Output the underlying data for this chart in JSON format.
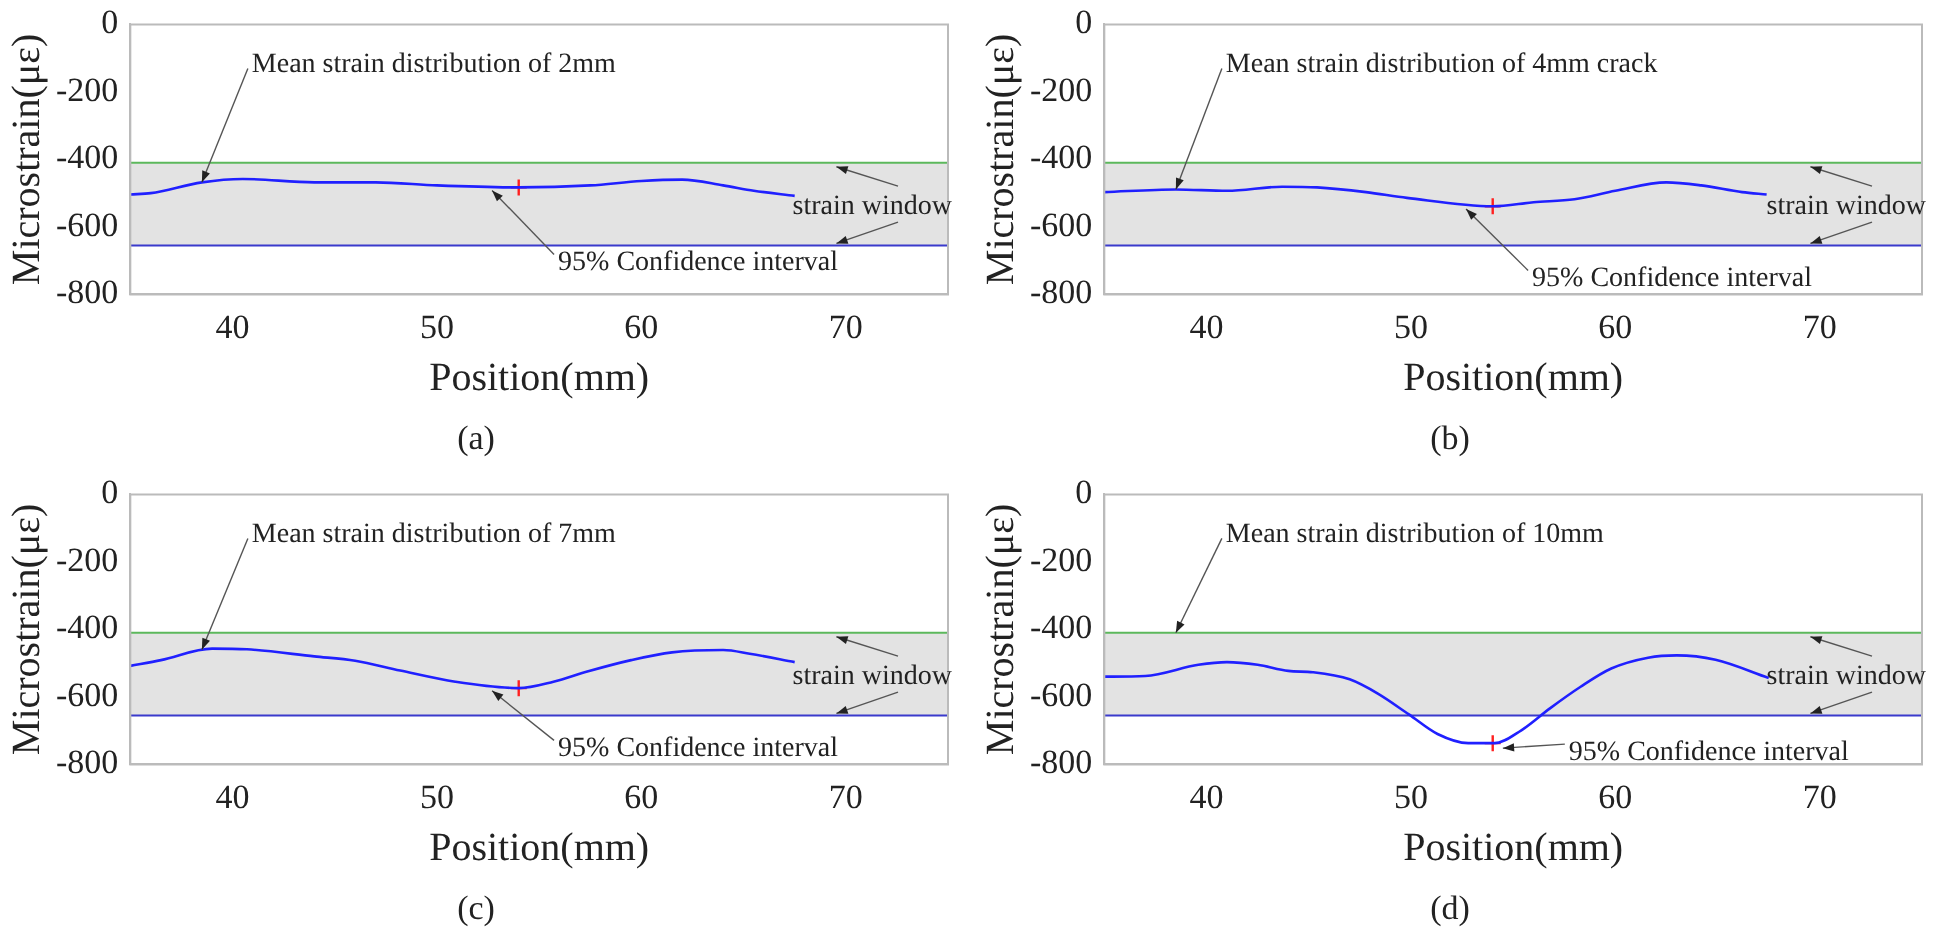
{
  "chart_data": [
    {
      "type": "line",
      "title": "(a)",
      "xlabel": "Position(mm)",
      "ylabel": "Microstrain(με)",
      "xlim": [
        35,
        75
      ],
      "xticks": [
        40,
        50,
        60,
        70
      ],
      "ylim": [
        -800,
        0
      ],
      "yticks": [
        0,
        -200,
        -400,
        -600,
        -800
      ],
      "series": [
        {
          "type": "line",
          "color": "#2020ff",
          "marker": "none",
          "x": [
            35,
            36,
            38.5,
            40.5,
            44,
            47,
            50,
            54,
            57.5,
            60,
            62,
            64,
            65.5,
            67.5
          ],
          "values": [
            -504,
            -500,
            -468,
            -458,
            -468,
            -468,
            -477,
            -483,
            -477,
            -464,
            -460,
            -477,
            -493,
            -508
          ]
        },
        {
          "type": "scatter",
          "color": "#ff2020",
          "marker": "cross",
          "x": [
            54
          ],
          "values": [
            -483
          ]
        }
      ],
      "bands": [
        {
          "axis": "y",
          "from": -655,
          "to": -410,
          "label": "strain window",
          "color": "#e3e3e3"
        }
      ],
      "ref_lines": [
        {
          "axis": "y",
          "value": -410,
          "color": "#5cb85c"
        },
        {
          "axis": "y",
          "value": -655,
          "color": "#3a3acc"
        }
      ],
      "annotations": [
        {
          "text": "Mean strain distribution of 2mm",
          "x": 38.5,
          "y": -468
        },
        {
          "text": "95% Confidence interval",
          "x": 52.5,
          "y": -480
        }
      ]
    },
    {
      "type": "line",
      "title": "(b)",
      "xlabel": "Position(mm)",
      "ylabel": "Microstrain(με)",
      "xlim": [
        35,
        75
      ],
      "xticks": [
        40,
        50,
        60,
        70
      ],
      "ylim": [
        -800,
        0
      ],
      "yticks": [
        0,
        -200,
        -400,
        -600,
        -800
      ],
      "series": [
        {
          "type": "line",
          "color": "#2020ff",
          "marker": "none",
          "x": [
            35,
            38.5,
            41,
            43.7,
            45.4,
            47.8,
            49.8,
            54,
            56,
            58,
            60,
            62.5,
            64.2,
            66.2,
            67.4
          ],
          "values": [
            -497,
            -489,
            -493,
            -481,
            -483,
            -497,
            -514,
            -539,
            -527,
            -518,
            -493,
            -468,
            -477,
            -497,
            -504
          ]
        },
        {
          "type": "scatter",
          "color": "#ff2020",
          "marker": "cross",
          "x": [
            54
          ],
          "values": [
            -539
          ]
        }
      ],
      "bands": [
        {
          "axis": "y",
          "from": -655,
          "to": -410,
          "label": "strain window",
          "color": "#e3e3e3"
        }
      ],
      "ref_lines": [
        {
          "axis": "y",
          "value": -410,
          "color": "#5cb85c"
        },
        {
          "axis": "y",
          "value": -655,
          "color": "#3a3acc"
        }
      ],
      "annotations": [
        {
          "text": "Mean strain distribution of 4mm crack",
          "x": 38.5,
          "y": -489
        },
        {
          "text": "95% Confidence interval",
          "x": 52.5,
          "y": -535
        }
      ]
    },
    {
      "type": "line",
      "title": "(c)",
      "xlabel": "Position(mm)",
      "ylabel": "Microstrain(με)",
      "xlim": [
        35,
        75
      ],
      "xticks": [
        40,
        50,
        60,
        70
      ],
      "ylim": [
        -800,
        0
      ],
      "yticks": [
        0,
        -200,
        -400,
        -600,
        -800
      ],
      "series": [
        {
          "type": "line",
          "color": "#2020ff",
          "marker": "none",
          "x": [
            35,
            36.5,
            39,
            40.7,
            44,
            46,
            48.2,
            50.9,
            54,
            55.7,
            57.4,
            59.5,
            61.5,
            64,
            65.3,
            67.5
          ],
          "values": [
            -508,
            -491,
            -457,
            -459,
            -480,
            -493,
            -522,
            -555,
            -574,
            -555,
            -524,
            -491,
            -468,
            -461,
            -472,
            -497
          ]
        },
        {
          "type": "scatter",
          "color": "#ff2020",
          "marker": "cross",
          "x": [
            54
          ],
          "values": [
            -574
          ]
        }
      ],
      "bands": [
        {
          "axis": "y",
          "from": -655,
          "to": -410,
          "label": "strain window",
          "color": "#e3e3e3"
        }
      ],
      "ref_lines": [
        {
          "axis": "y",
          "value": -410,
          "color": "#5cb85c"
        },
        {
          "axis": "y",
          "value": -655,
          "color": "#3a3acc"
        }
      ],
      "annotations": [
        {
          "text": "Mean strain distribution of 7mm",
          "x": 38.5,
          "y": -460
        },
        {
          "text": "95% Confidence interval",
          "x": 52.5,
          "y": -570
        }
      ]
    },
    {
      "type": "line",
      "title": "(d)",
      "xlabel": "Position(mm)",
      "ylabel": "Microstrain(με)",
      "xlim": [
        35,
        75
      ],
      "xticks": [
        40,
        50,
        60,
        70
      ],
      "ylim": [
        -800,
        0
      ],
      "yticks": [
        0,
        -200,
        -400,
        -600,
        -800
      ],
      "series": [
        {
          "type": "line",
          "color": "#2020ff",
          "marker": "none",
          "x": [
            35,
            37,
            39.6,
            41,
            42.5,
            44,
            45.2,
            47,
            48.4,
            49.9,
            51.3,
            52.8,
            54.1,
            55.4,
            56.8,
            58.3,
            59.8,
            61.6,
            63,
            64.9,
            67.5
          ],
          "values": [
            -540,
            -538,
            -505,
            -497,
            -505,
            -523,
            -527,
            -548,
            -591,
            -652,
            -710,
            -737,
            -737,
            -699,
            -634,
            -570,
            -516,
            -484,
            -477,
            -490,
            -544
          ]
        },
        {
          "type": "scatter",
          "color": "#ff2020",
          "marker": "cross",
          "x": [
            54
          ],
          "values": [
            -737
          ]
        }
      ],
      "bands": [
        {
          "axis": "y",
          "from": -655,
          "to": -410,
          "label": "strain window",
          "color": "#e3e3e3"
        }
      ],
      "ref_lines": [
        {
          "axis": "y",
          "value": -410,
          "color": "#5cb85c"
        },
        {
          "axis": "y",
          "value": -655,
          "color": "#3a3acc"
        }
      ],
      "annotations": [
        {
          "text": "Mean strain distribution of 10mm",
          "x": 38.5,
          "y": -410
        },
        {
          "text": "95% Confidence interval",
          "x": 54.3,
          "y": -740
        }
      ]
    }
  ]
}
